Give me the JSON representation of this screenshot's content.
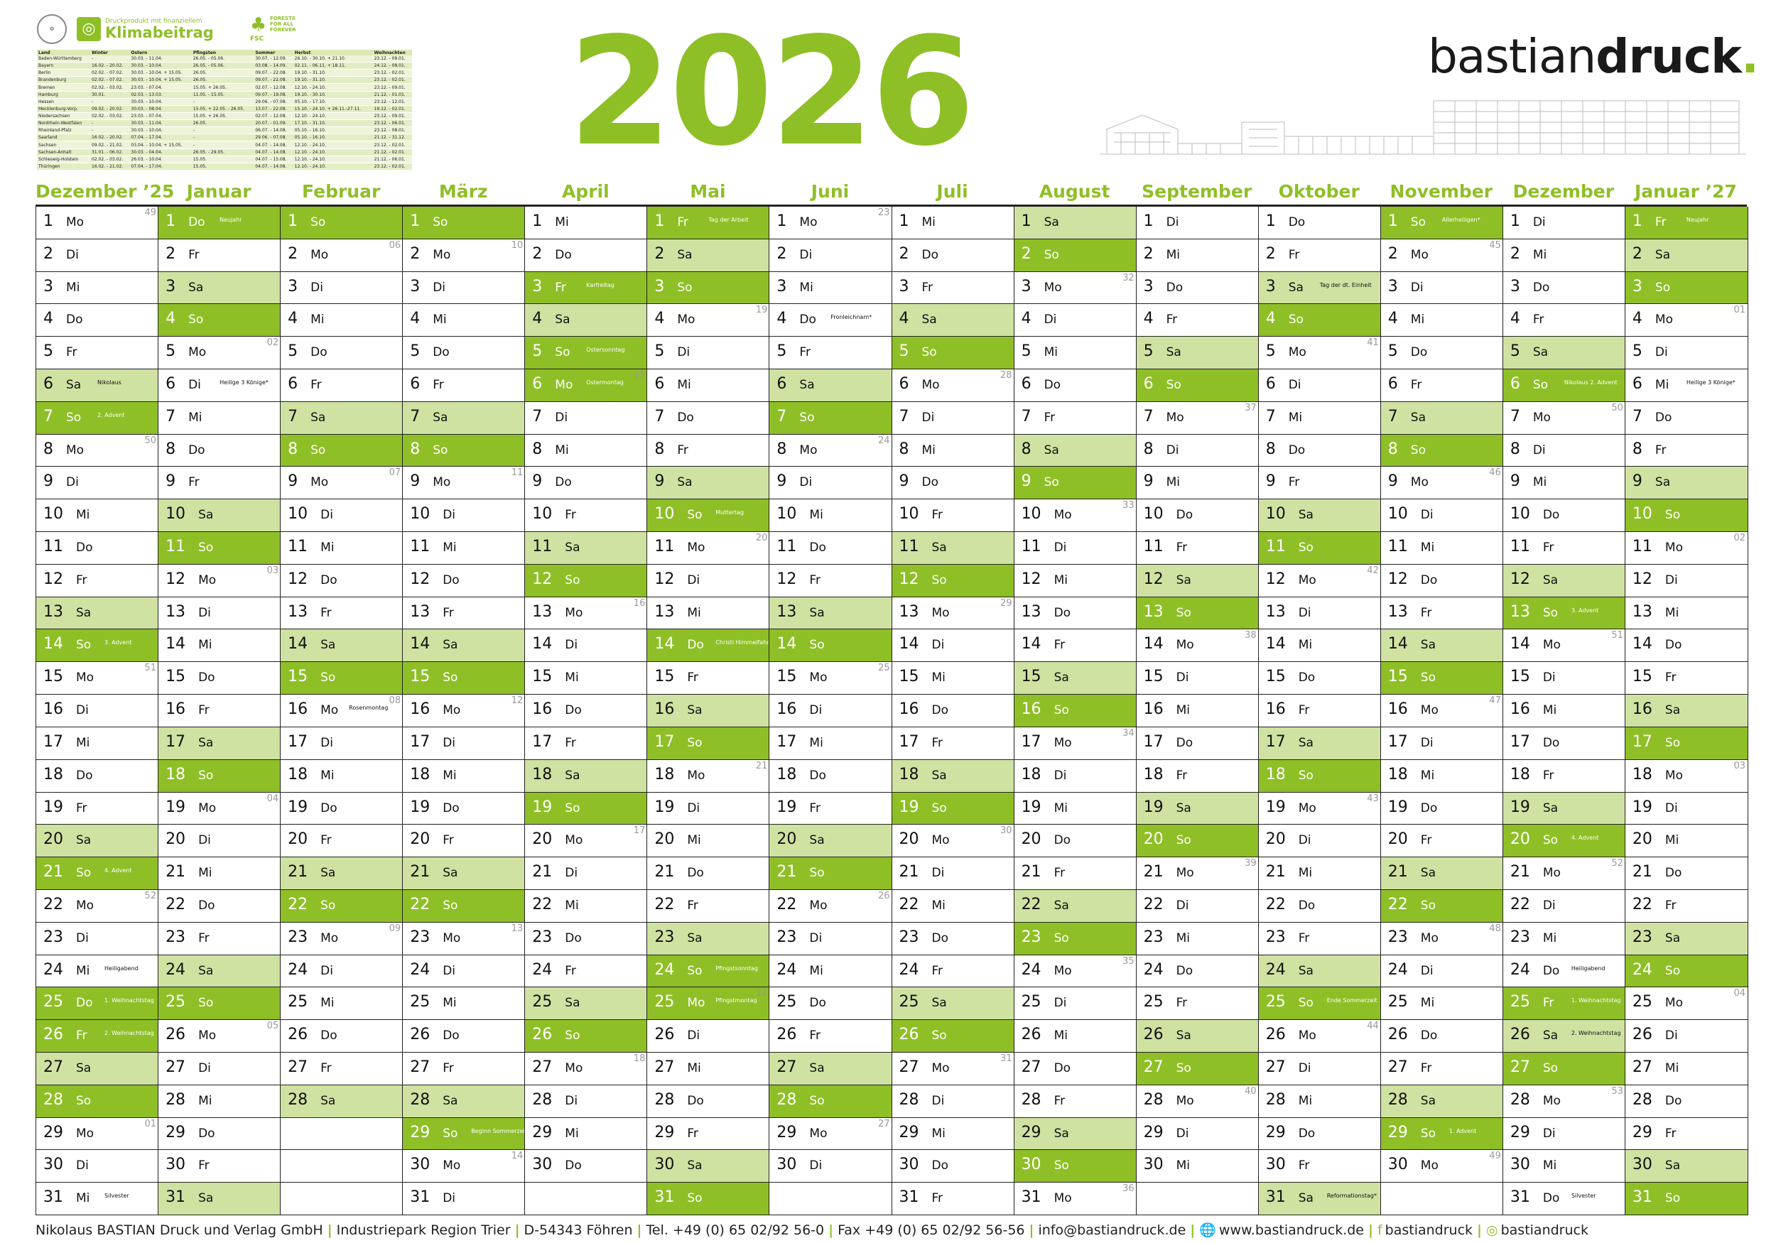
{
  "header": {
    "year": "2026",
    "brand_light": "bastian",
    "brand_bold": "druck",
    "brand_dot": ".",
    "klima_small": "Druckprodukt mit finanziellem",
    "klima_big": "Klimabeitrag",
    "fsc_label": "FSC",
    "fsc_text": "FORESTS FOR ALL FOREVER"
  },
  "holidays_table": {
    "headers": [
      "Land",
      "Winter",
      "Ostern",
      "Pfingsten",
      "Sommer",
      "Herbst",
      "Weihnachten"
    ],
    "rows": [
      [
        "Baden-Württemberg",
        "-",
        "30.03. - 11.04.",
        "26.05. - 05.06.",
        "30.07. - 12.09.",
        "26.10. - 30.10. + 21.10.",
        "23.12. - 09.01."
      ],
      [
        "Bayern",
        "16.02. - 20.02.",
        "30.03. - 10.04.",
        "26.05. - 05.06.",
        "03.08. - 14.09.",
        "02.11. - 06.11. + 18.11.",
        "24.12. - 08.01."
      ],
      [
        "Berlin",
        "02.02. - 07.02.",
        "30.03. - 10.04. + 15.05.",
        "26.05.",
        "09.07. - 22.08.",
        "19.10. - 31.10.",
        "23.12. - 02.01."
      ],
      [
        "Brandenburg",
        "02.02. - 07.02.",
        "30.03. - 10.04. + 15.05.",
        "26.05.",
        "09.07. - 22.08.",
        "19.10. - 31.10.",
        "23.12. - 02.01."
      ],
      [
        "Bremen",
        "02.02. - 03.02.",
        "23.03. - 07.04.",
        "15.05. + 26.05.",
        "02.07. - 12.08.",
        "12.10. - 24.10.",
        "23.12. - 09.01."
      ],
      [
        "Hamburg",
        "30.01.",
        "02.03. - 13.03.",
        "11.05. - 15.05.",
        "09.07. - 19.08.",
        "19.10. - 30.10.",
        "21.12. - 01.01."
      ],
      [
        "Hessen",
        "-",
        "30.03. - 10.04.",
        "-",
        "29.06. - 07.08.",
        "05.10. - 17.10.",
        "23.12. - 12.01."
      ],
      [
        "Mecklenburg-Vorp.",
        "09.02. - 20.02.",
        "30.03. - 08.04.",
        "15.05. + 22.05. - 26.05.",
        "13.07. - 22.08.",
        "15.10. - 24.10. + 26.11.-27.11.",
        "19.12. - 02.01."
      ],
      [
        "Niedersachsen",
        "02.02. - 03.02.",
        "23.03. - 07.04.",
        "15.05. + 26.05.",
        "02.07. - 12.08.",
        "12.10. - 24.10.",
        "23.12. - 09.01."
      ],
      [
        "Nordrhein-Westfalen",
        "-",
        "30.03. - 11.04.",
        "26.05.",
        "20.07. - 01.09.",
        "17.10. - 31.10.",
        "23.12. - 06.01."
      ],
      [
        "Rheinland-Pfalz",
        "-",
        "30.03. - 10.04.",
        "-",
        "06.07. - 14.08.",
        "05.10. - 16.10.",
        "23.12. - 08.01."
      ],
      [
        "Saarland",
        "16.02. - 20.02.",
        "07.04. - 17.04.",
        "-",
        "29.06. - 07.08.",
        "05.10. - 16.10.",
        "21.12. - 31.12."
      ],
      [
        "Sachsen",
        "09.02. - 21.02.",
        "03.04. - 10.04. + 15.05.",
        "-",
        "04.07. - 14.08.",
        "12.10. - 24.10.",
        "23.12. - 02.01."
      ],
      [
        "Sachsen-Anhalt",
        "31.01. - 06.02.",
        "30.03. - 04.04.",
        "26.05. - 29.05.",
        "04.07. - 14.08.",
        "12.10. - 24.10.",
        "21.12. - 02.01."
      ],
      [
        "Schleswig-Holstein",
        "02.02. - 03.02.",
        "26.03. - 10.04.",
        "15.05.",
        "04.07. - 15.08.",
        "12.10. - 24.10.",
        "21.12. - 06.01."
      ],
      [
        "Thüringen",
        "16.02. - 21.02.",
        "07.04. - 17.04.",
        "15.05.",
        "04.07. - 14.08.",
        "12.10. - 24.10.",
        "23.12. - 02.01."
      ]
    ]
  },
  "months": [
    {
      "name": "Dezember ’25",
      "start": 0,
      "len": 31,
      "holidays": {
        "6": "Nikolaus",
        "7": "2. Advent",
        "14": "3. Advent",
        "21": "4. Advent",
        "24": "Heiligabend",
        "25": "1. Weihnachtstag",
        "26": "2. Weihnachtstag",
        "31": "Silvester"
      },
      "kw": {
        "1": "49",
        "8": "50",
        "15": "51",
        "22": "52",
        "29": "01"
      }
    },
    {
      "name": "Januar",
      "start": 3,
      "len": 31,
      "holidays": {
        "1": "Neujahr",
        "6": "Heilige 3 Könige*"
      },
      "kw": {
        "5": "02",
        "12": "03",
        "19": "04",
        "26": "05"
      }
    },
    {
      "name": "Februar",
      "start": 6,
      "len": 28,
      "holidays": {
        "16": "Rosenmontag"
      },
      "kw": {
        "2": "06",
        "9": "07",
        "16": "08",
        "23": "09"
      }
    },
    {
      "name": "März",
      "start": 6,
      "len": 31,
      "holidays": {
        "29": "Beginn Sommerzeit"
      },
      "kw": {
        "2": "10",
        "9": "11",
        "16": "12",
        "23": "13",
        "30": "14"
      }
    },
    {
      "name": "April",
      "start": 2,
      "len": 30,
      "holidays": {
        "3": "Karfreitag",
        "5": "Ostersonntag",
        "6": "Ostermontag"
      },
      "kw": {
        "6": "15",
        "13": "16",
        "20": "17",
        "27": "18"
      }
    },
    {
      "name": "Mai",
      "start": 4,
      "len": 31,
      "holidays": {
        "1": "Tag der Arbeit",
        "10": "Muttertag",
        "14": "Christi Himmelfahrt",
        "24": "Pfingstsonntag",
        "25": "Pfingstmontag"
      },
      "kw": {
        "4": "19",
        "11": "20",
        "18": "21",
        "25": "22"
      }
    },
    {
      "name": "Juni",
      "start": 0,
      "len": 30,
      "holidays": {
        "4": "Fronleichnam*"
      },
      "kw": {
        "1": "23",
        "8": "24",
        "15": "25",
        "22": "26",
        "29": "27"
      }
    },
    {
      "name": "Juli",
      "start": 2,
      "len": 31,
      "holidays": {},
      "kw": {
        "6": "28",
        "13": "29",
        "20": "30",
        "27": "31"
      }
    },
    {
      "name": "August",
      "start": 5,
      "len": 31,
      "holidays": {},
      "kw": {
        "3": "32",
        "10": "33",
        "17": "34",
        "24": "35",
        "31": "36"
      }
    },
    {
      "name": "September",
      "start": 1,
      "len": 30,
      "holidays": {},
      "kw": {
        "7": "37",
        "14": "38",
        "21": "39",
        "28": "40"
      }
    },
    {
      "name": "Oktober",
      "start": 3,
      "len": 31,
      "holidays": {
        "3": "Tag der dt. Einheit",
        "25": "Ende Sommerzeit",
        "31": "Reformationstag*"
      },
      "kw": {
        "5": "41",
        "12": "42",
        "19": "43",
        "26": "44"
      }
    },
    {
      "name": "November",
      "start": 6,
      "len": 30,
      "holidays": {
        "1": "Allerheiligen*",
        "29": "1. Advent"
      },
      "kw": {
        "2": "45",
        "9": "46",
        "16": "47",
        "23": "48",
        "30": "49"
      }
    },
    {
      "name": "Dezember",
      "start": 1,
      "len": 31,
      "holidays": {
        "6": "Nikolaus 2. Advent",
        "13": "3. Advent",
        "20": "4. Advent",
        "24": "Heiligabend",
        "25": "1. Weihnachtstag",
        "26": "2. Weihnachtstag",
        "31": "Silvester"
      },
      "kw": {
        "7": "50",
        "14": "51",
        "21": "52",
        "28": "53"
      }
    },
    {
      "name": "Januar ’27",
      "start": 4,
      "len": 31,
      "holidays": {
        "1": "Neujahr",
        "6": "Heilige 3 Könige*"
      },
      "kw": {
        "4": "01",
        "11": "02",
        "18": "03",
        "25": "04"
      }
    }
  ],
  "weekdays": [
    "Mo",
    "Di",
    "Mi",
    "Do",
    "Fr",
    "Sa",
    "So"
  ],
  "footer": {
    "company": "Nikolaus BASTIAN Druck und Verlag GmbH",
    "park": "Industriepark Region Trier",
    "city": "D-54343 Föhren",
    "tel": "Tel. +49 (0) 65 02/92 56-0",
    "fax": "Fax +49 (0) 65 02/92 56-56",
    "email": "info@bastiandruck.de",
    "web": "www.bastiandruck.de",
    "facebook": "bastiandruck",
    "instagram": "bastiandruck"
  },
  "colors": {
    "accent": "#8fbf26",
    "saturday": "#cfe2a2",
    "sunday": "#8fbf26"
  }
}
